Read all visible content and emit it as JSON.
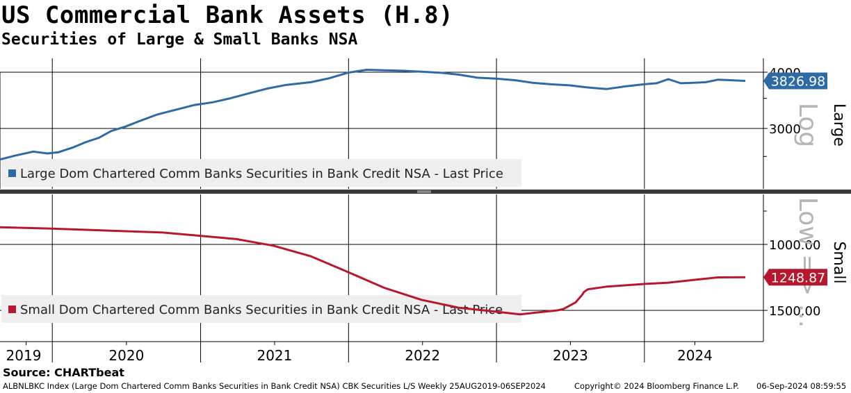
{
  "title": "US Commercial Bank Assets (H.8)",
  "subtitle": "Securities of Large & Small Banks NSA",
  "source": "Source: CHARTbeat",
  "footer": {
    "index": "ALBNLBKC Index (Large Dom Chartered Comm Banks Securities in Bank Credit NSA) CBK Securities L/S  Weekly 25AUG2019-06SEP2024",
    "copyright": "Copyright© 2024 Bloomberg Finance L.P.",
    "timestamp": "06-Sep-2024 08:59:55"
  },
  "colors": {
    "large": "#2d6aa6",
    "small": "#b8172e",
    "small_light": "#d96a7a"
  },
  "chart_data": [
    {
      "type": "line",
      "panel": "top",
      "axis_label": "Large",
      "scale_label": "Log",
      "scale": "log",
      "ylim": [
        2500,
        4100
      ],
      "yticks": [
        3000,
        4000
      ],
      "ytick_labels": [
        "3000",
        "4000"
      ],
      "x_tick_labels": [
        "2019",
        "2020",
        "2021",
        "2022",
        "2023",
        "2024"
      ],
      "grid": true,
      "legend": "bottom-left",
      "series": [
        {
          "name": "Large Dom Chartered Comm Banks Securities in Bank Credit NSA - Last Price",
          "last_value_label": "3826.98",
          "points": [
            [
              "2019-08-25",
              2560
            ],
            [
              "2019-10-01",
              2610
            ],
            [
              "2019-11-15",
              2665
            ],
            [
              "2019-12-20",
              2640
            ],
            [
              "2020-01-15",
              2655
            ],
            [
              "2020-02-20",
              2720
            ],
            [
              "2020-03-25",
              2800
            ],
            [
              "2020-04-25",
              2860
            ],
            [
              "2020-05-25",
              2960
            ],
            [
              "2020-06-30",
              3030
            ],
            [
              "2020-08-01",
              3110
            ],
            [
              "2020-09-15",
              3220
            ],
            [
              "2020-10-31",
              3300
            ],
            [
              "2020-12-15",
              3380
            ],
            [
              "2021-01-31",
              3430
            ],
            [
              "2021-03-15",
              3500
            ],
            [
              "2021-04-30",
              3590
            ],
            [
              "2021-06-15",
              3680
            ],
            [
              "2021-08-01",
              3750
            ],
            [
              "2021-09-30",
              3800
            ],
            [
              "2021-11-15",
              3880
            ],
            [
              "2021-12-31",
              3990
            ],
            [
              "2022-02-15",
              4050
            ],
            [
              "2022-03-31",
              4040
            ],
            [
              "2022-05-15",
              4030
            ],
            [
              "2022-06-30",
              4010
            ],
            [
              "2022-08-15",
              3990
            ],
            [
              "2022-09-30",
              3950
            ],
            [
              "2022-11-15",
              3890
            ],
            [
              "2022-12-31",
              3870
            ],
            [
              "2023-02-15",
              3840
            ],
            [
              "2023-03-31",
              3790
            ],
            [
              "2023-05-15",
              3760
            ],
            [
              "2023-06-30",
              3740
            ],
            [
              "2023-08-15",
              3700
            ],
            [
              "2023-09-30",
              3670
            ],
            [
              "2023-11-15",
              3720
            ],
            [
              "2023-12-31",
              3760
            ],
            [
              "2024-01-31",
              3780
            ],
            [
              "2024-02-29",
              3860
            ],
            [
              "2024-03-31",
              3780
            ],
            [
              "2024-04-30",
              3790
            ],
            [
              "2024-05-31",
              3800
            ],
            [
              "2024-06-30",
              3850
            ],
            [
              "2024-07-31",
              3840
            ],
            [
              "2024-09-06",
              3826.98
            ]
          ]
        }
      ]
    },
    {
      "type": "line",
      "panel": "bottom",
      "axis_label": "Small",
      "scale_label": "Low => ...",
      "scale": "inverted",
      "ylim": [
        1650,
        850
      ],
      "yticks": [
        1000,
        1500
      ],
      "ytick_labels": [
        "1000.00",
        "1500.00"
      ],
      "x_tick_labels": [
        "2019",
        "2020",
        "2021",
        "2022",
        "2023",
        "2024"
      ],
      "grid": true,
      "legend": "bottom-left",
      "series": [
        {
          "name": "Small Dom Chartered Comm Banks Securities in Bank Credit NSA - Last Price",
          "last_value_label": "1248.87",
          "points": [
            [
              "2019-08-25",
              870
            ],
            [
              "2019-12-31",
              880
            ],
            [
              "2020-03-31",
              890
            ],
            [
              "2020-06-30",
              900
            ],
            [
              "2020-09-30",
              910
            ],
            [
              "2020-12-31",
              935
            ],
            [
              "2021-03-31",
              960
            ],
            [
              "2021-06-30",
              1010
            ],
            [
              "2021-09-30",
              1090
            ],
            [
              "2021-12-31",
              1210
            ],
            [
              "2022-03-31",
              1330
            ],
            [
              "2022-06-30",
              1420
            ],
            [
              "2022-09-30",
              1480
            ],
            [
              "2022-12-31",
              1510
            ],
            [
              "2023-02-28",
              1530
            ],
            [
              "2023-03-31",
              1520
            ],
            [
              "2023-05-31",
              1500
            ],
            [
              "2023-06-15",
              1490
            ],
            [
              "2023-07-15",
              1440
            ],
            [
              "2023-08-01",
              1380
            ],
            [
              "2023-08-05",
              1360
            ],
            [
              "2023-08-15",
              1340
            ],
            [
              "2023-09-30",
              1320
            ],
            [
              "2023-12-31",
              1300
            ],
            [
              "2024-02-29",
              1290
            ],
            [
              "2024-04-30",
              1270
            ],
            [
              "2024-06-30",
              1250
            ],
            [
              "2024-09-06",
              1248.87
            ]
          ]
        }
      ]
    }
  ]
}
